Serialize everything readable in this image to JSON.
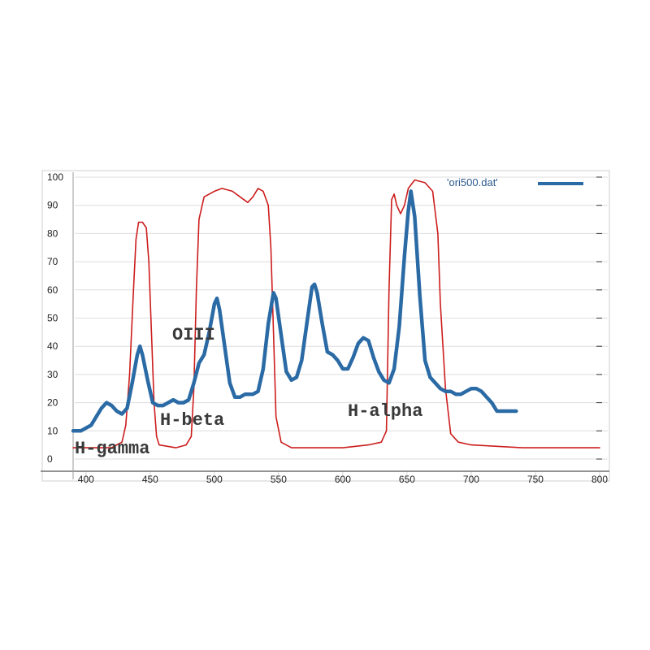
{
  "chart_data": {
    "type": "line",
    "xlim": [
      390,
      800
    ],
    "ylim": [
      0,
      100
    ],
    "x_ticks": [
      400,
      450,
      500,
      550,
      600,
      650,
      700,
      750,
      800
    ],
    "y_ticks": [
      0,
      10,
      20,
      30,
      40,
      50,
      60,
      70,
      80,
      90,
      100
    ],
    "grid": true,
    "legend_position": "top-right",
    "series": [
      {
        "name": "'ori500.dat'",
        "color": "#2a6aa5",
        "points": [
          [
            390,
            10
          ],
          [
            396,
            10
          ],
          [
            400,
            11
          ],
          [
            404,
            12
          ],
          [
            408,
            15
          ],
          [
            412,
            18
          ],
          [
            416,
            20
          ],
          [
            420,
            19
          ],
          [
            424,
            17
          ],
          [
            428,
            16
          ],
          [
            432,
            18
          ],
          [
            436,
            27
          ],
          [
            440,
            37
          ],
          [
            442,
            40
          ],
          [
            444,
            37
          ],
          [
            448,
            28
          ],
          [
            452,
            20
          ],
          [
            456,
            19
          ],
          [
            460,
            19
          ],
          [
            464,
            20
          ],
          [
            468,
            21
          ],
          [
            472,
            20
          ],
          [
            476,
            20
          ],
          [
            480,
            21
          ],
          [
            484,
            27
          ],
          [
            488,
            34
          ],
          [
            492,
            37
          ],
          [
            496,
            45
          ],
          [
            500,
            55
          ],
          [
            502,
            57
          ],
          [
            504,
            53
          ],
          [
            508,
            40
          ],
          [
            512,
            27
          ],
          [
            516,
            22
          ],
          [
            520,
            22
          ],
          [
            524,
            23
          ],
          [
            530,
            23
          ],
          [
            534,
            24
          ],
          [
            538,
            32
          ],
          [
            542,
            48
          ],
          [
            546,
            59
          ],
          [
            548,
            57
          ],
          [
            552,
            44
          ],
          [
            556,
            31
          ],
          [
            560,
            28
          ],
          [
            564,
            29
          ],
          [
            568,
            35
          ],
          [
            572,
            48
          ],
          [
            576,
            61
          ],
          [
            578,
            62
          ],
          [
            580,
            59
          ],
          [
            584,
            48
          ],
          [
            588,
            38
          ],
          [
            592,
            37
          ],
          [
            596,
            35
          ],
          [
            600,
            32
          ],
          [
            604,
            32
          ],
          [
            608,
            36
          ],
          [
            612,
            41
          ],
          [
            616,
            43
          ],
          [
            620,
            42
          ],
          [
            624,
            36
          ],
          [
            628,
            31
          ],
          [
            632,
            28
          ],
          [
            636,
            27
          ],
          [
            640,
            32
          ],
          [
            644,
            47
          ],
          [
            648,
            72
          ],
          [
            651,
            88
          ],
          [
            653,
            95
          ],
          [
            656,
            86
          ],
          [
            660,
            58
          ],
          [
            664,
            35
          ],
          [
            668,
            29
          ],
          [
            672,
            27
          ],
          [
            676,
            25
          ],
          [
            680,
            24
          ],
          [
            684,
            24
          ],
          [
            688,
            23
          ],
          [
            692,
            23
          ],
          [
            696,
            24
          ],
          [
            700,
            25
          ],
          [
            704,
            25
          ],
          [
            708,
            24
          ],
          [
            712,
            22
          ],
          [
            716,
            20
          ],
          [
            720,
            17
          ],
          [
            726,
            17
          ],
          [
            735,
            17
          ]
        ]
      },
      {
        "name": "",
        "color": "#cc1d1d",
        "points": [
          [
            390,
            4
          ],
          [
            400,
            4
          ],
          [
            412,
            4
          ],
          [
            420,
            4
          ],
          [
            424,
            5
          ],
          [
            428,
            6
          ],
          [
            431,
            12
          ],
          [
            434,
            30
          ],
          [
            437,
            60
          ],
          [
            439,
            78
          ],
          [
            441,
            84
          ],
          [
            444,
            84
          ],
          [
            447,
            82
          ],
          [
            449,
            70
          ],
          [
            451,
            45
          ],
          [
            453,
            20
          ],
          [
            455,
            8
          ],
          [
            457,
            5
          ],
          [
            470,
            4
          ],
          [
            478,
            5
          ],
          [
            482,
            8
          ],
          [
            484,
            25
          ],
          [
            486,
            60
          ],
          [
            488,
            85
          ],
          [
            492,
            93
          ],
          [
            500,
            95
          ],
          [
            506,
            96
          ],
          [
            514,
            95
          ],
          [
            520,
            93
          ],
          [
            526,
            91
          ],
          [
            530,
            93
          ],
          [
            534,
            96
          ],
          [
            538,
            95
          ],
          [
            542,
            90
          ],
          [
            544,
            75
          ],
          [
            546,
            45
          ],
          [
            548,
            15
          ],
          [
            552,
            6
          ],
          [
            560,
            4
          ],
          [
            580,
            4
          ],
          [
            600,
            4
          ],
          [
            620,
            5
          ],
          [
            630,
            6
          ],
          [
            634,
            10
          ],
          [
            636,
            60
          ],
          [
            638,
            92
          ],
          [
            640,
            94
          ],
          [
            642,
            90
          ],
          [
            645,
            87
          ],
          [
            648,
            90
          ],
          [
            651,
            96
          ],
          [
            656,
            99
          ],
          [
            664,
            98
          ],
          [
            670,
            95
          ],
          [
            674,
            80
          ],
          [
            676,
            55
          ],
          [
            680,
            25
          ],
          [
            684,
            9
          ],
          [
            690,
            6
          ],
          [
            700,
            5
          ],
          [
            740,
            4
          ],
          [
            800,
            4
          ]
        ]
      }
    ],
    "annotations": [
      "OIII",
      "H-beta",
      "H-alpha",
      "H-gamma"
    ]
  }
}
